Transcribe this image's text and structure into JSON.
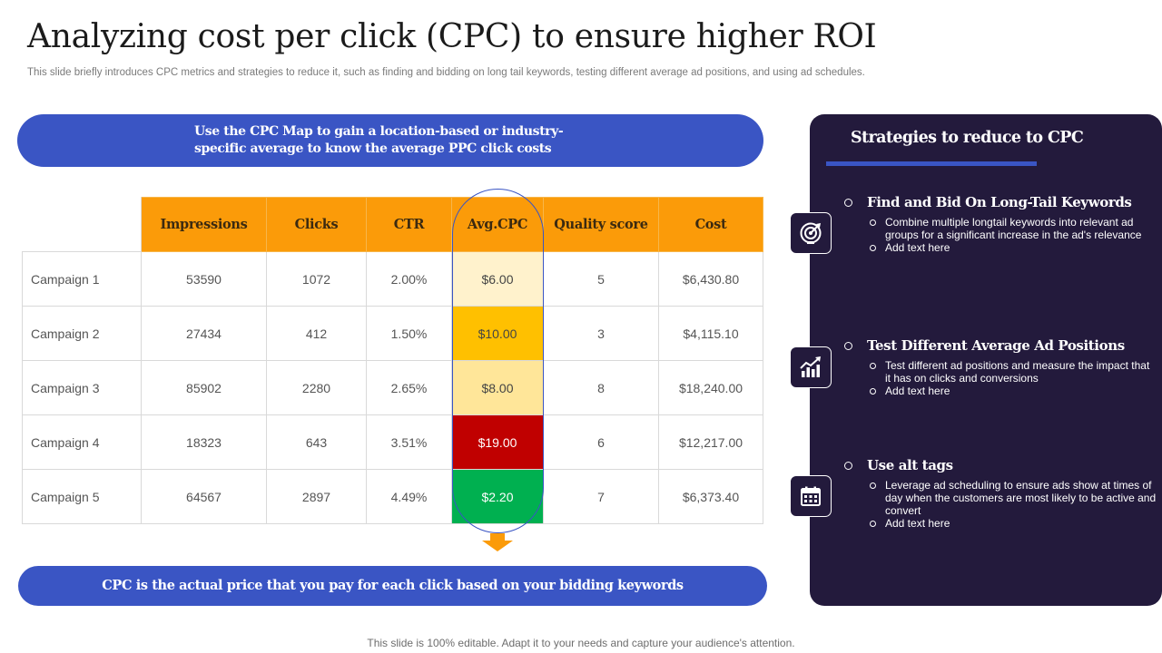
{
  "title": "Analyzing cost per click (CPC) to ensure higher ROI",
  "subtitle": "This slide briefly introduces CPC metrics and strategies to reduce it, such as finding and bidding on long tail keywords,  testing different average ad positions, and using ad schedules.",
  "banner_top": "Use the CPC Map to gain a location-based or industry-specific average to know the average PPC click costs",
  "banner_bottom": "CPC is the actual price that you pay for each click based on your bidding keywords",
  "table": {
    "headers": [
      "Impressions",
      "Clicks",
      "CTR",
      "Avg.CPC",
      "Quality score",
      "Cost"
    ],
    "rows": [
      {
        "name": "Campaign 1",
        "impressions": "53590",
        "clicks": "1072",
        "ctr": "2.00%",
        "cpc": "$6.00",
        "quality": "5",
        "cost": "$6,430.80"
      },
      {
        "name": "Campaign 2",
        "impressions": "27434",
        "clicks": "412",
        "ctr": "1.50%",
        "cpc": "$10.00",
        "quality": "3",
        "cost": "$4,115.10"
      },
      {
        "name": "Campaign 3",
        "impressions": "85902",
        "clicks": "2280",
        "ctr": "2.65%",
        "cpc": "$8.00",
        "quality": "8",
        "cost": "$18,240.00"
      },
      {
        "name": "Campaign 4",
        "impressions": "18323",
        "clicks": "643",
        "ctr": "3.51%",
        "cpc": "$19.00",
        "quality": "6",
        "cost": "$12,217.00"
      },
      {
        "name": "Campaign 5",
        "impressions": "64567",
        "clicks": "2897",
        "ctr": "4.49%",
        "cpc": "$2.20",
        "quality": "7",
        "cost": "$6,373.40"
      }
    ],
    "cpc_colors": [
      "#fff2cc",
      "#ffc000",
      "#ffe699",
      "#c00000",
      "#00b050"
    ],
    "cpc_text_colors": [
      "#444444",
      "#444444",
      "#444444",
      "#ffffff",
      "#ffffff"
    ]
  },
  "panel": {
    "title": "Strategies to reduce to CPC",
    "strategies": [
      {
        "icon": "target-icon",
        "heading": "Find and Bid On Long-Tail Keywords",
        "bullets": [
          "Combine multiple longtail keywords into relevant ad groups for a significant increase in the ad's relevance",
          "Add text here"
        ]
      },
      {
        "icon": "growth-chart-icon",
        "heading": "Test Different Average Ad Positions",
        "bullets": [
          "Test different ad positions and measure the impact that it has on clicks and conversions",
          "Add text here"
        ]
      },
      {
        "icon": "calendar-icon",
        "heading": "Use alt tags",
        "bullets": [
          "Leverage ad scheduling to ensure ads show at times of day when the customers are most likely to be active and convert",
          "Add text here"
        ]
      }
    ]
  },
  "footer": "This slide is 100% editable. Adapt it to your needs and capture your audience's attention.",
  "colors": {
    "accent_blue": "#3a55c4",
    "header_orange": "#fb9b09",
    "panel_bg": "#231a3c"
  }
}
